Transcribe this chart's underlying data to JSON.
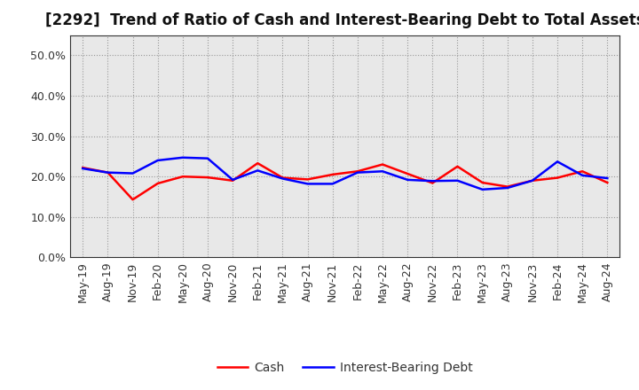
{
  "title": "[2292]  Trend of Ratio of Cash and Interest-Bearing Debt to Total Assets",
  "x_labels": [
    "May-19",
    "Aug-19",
    "Nov-19",
    "Feb-20",
    "May-20",
    "Aug-20",
    "Nov-20",
    "Feb-21",
    "May-21",
    "Aug-21",
    "Nov-21",
    "Feb-22",
    "May-22",
    "Aug-22",
    "Nov-22",
    "Feb-23",
    "May-23",
    "Aug-23",
    "Nov-23",
    "Feb-24",
    "May-24",
    "Aug-24"
  ],
  "cash": [
    0.222,
    0.21,
    0.143,
    0.183,
    0.2,
    0.198,
    0.19,
    0.233,
    0.197,
    0.193,
    0.205,
    0.213,
    0.23,
    0.207,
    0.184,
    0.225,
    0.185,
    0.175,
    0.19,
    0.197,
    0.213,
    0.185
  ],
  "interest_bearing_debt": [
    0.22,
    0.21,
    0.208,
    0.24,
    0.247,
    0.245,
    0.192,
    0.215,
    0.195,
    0.182,
    0.182,
    0.21,
    0.213,
    0.192,
    0.189,
    0.19,
    0.168,
    0.172,
    0.19,
    0.237,
    0.203,
    0.196
  ],
  "cash_color": "#ff0000",
  "debt_color": "#0000ff",
  "ylim": [
    0.0,
    0.55
  ],
  "yticks": [
    0.0,
    0.1,
    0.2,
    0.3,
    0.4,
    0.5
  ],
  "plot_bg_color": "#e8e8e8",
  "fig_bg_color": "#ffffff",
  "grid_color": "#999999",
  "legend_labels": [
    "Cash",
    "Interest-Bearing Debt"
  ],
  "title_fontsize": 12,
  "tick_fontsize": 9,
  "legend_fontsize": 10
}
